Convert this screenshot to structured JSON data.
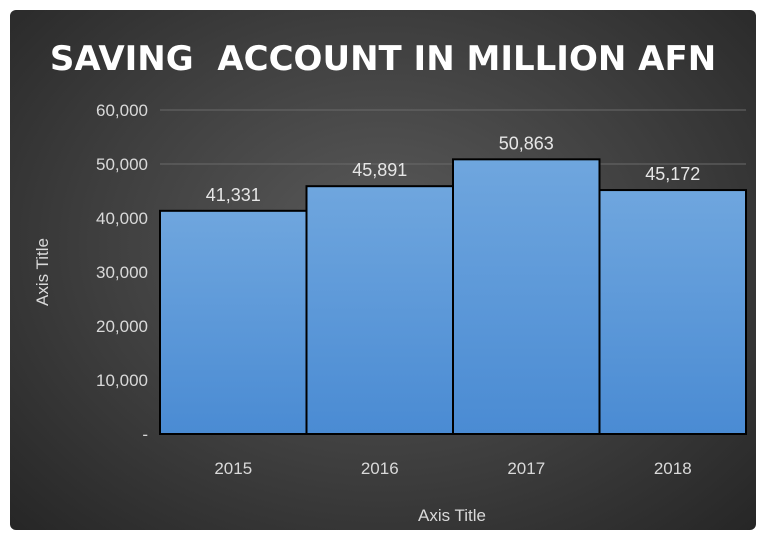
{
  "chart_data": {
    "type": "bar",
    "title": "SAVING  ACCOUNT IN MILLION AFN",
    "xlabel": "Axis Title",
    "ylabel": "Axis Title",
    "categories": [
      "2015",
      "2016",
      "2017",
      "2018"
    ],
    "values": [
      41331,
      45891,
      50863,
      45172
    ],
    "data_labels": [
      "41,331",
      "45,891",
      "50,863",
      "45,172"
    ],
    "ylim": [
      0,
      60000
    ],
    "yticks": [
      0,
      10000,
      20000,
      30000,
      40000,
      50000,
      60000
    ],
    "ytick_labels": [
      "-",
      "10,000",
      "20,000",
      "30,000",
      "40,000",
      "50,000",
      "60,000"
    ],
    "grid": true,
    "legend": "none",
    "bar_color": "#5b9bd5"
  }
}
